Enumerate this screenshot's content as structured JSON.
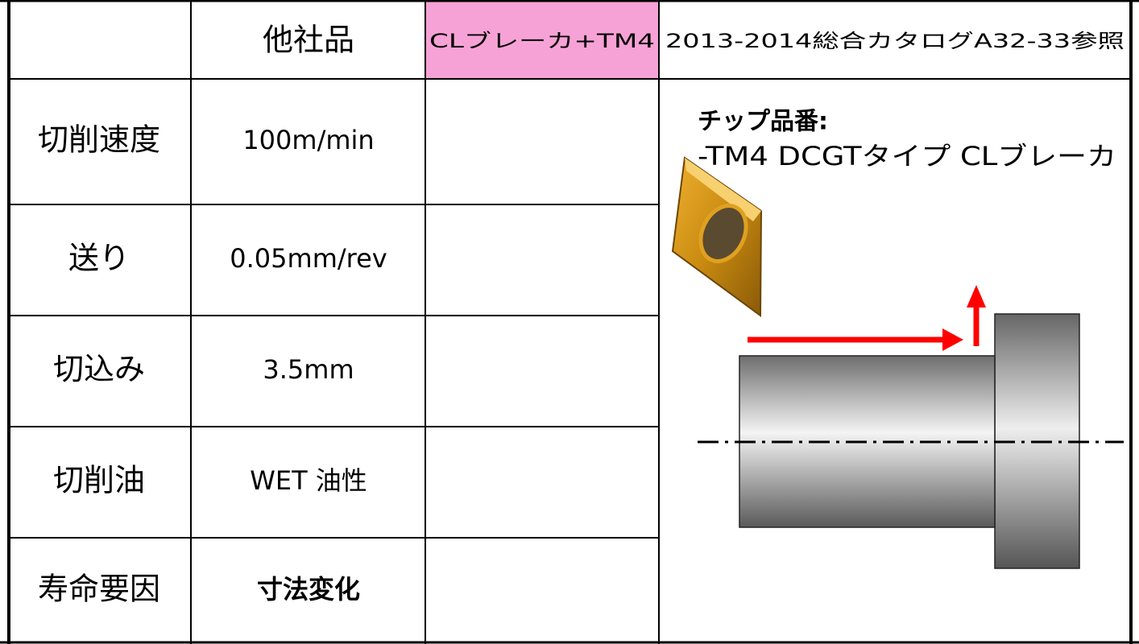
{
  "table": {
    "header": [
      "他社品",
      "CLブレーカ+TM4",
      "2013-2014総合カタログA32-33参照"
    ],
    "rows": [
      [
        "切削速度",
        "100m/min"
      ],
      [
        "送り",
        "0.05mm/rev"
      ],
      [
        "切込み",
        "3.5mm"
      ],
      [
        "切削油",
        "WET 油性"
      ],
      [
        "寿命要因",
        "寸法変化"
      ]
    ]
  },
  "image": {
    "caption": [
      "チップ品番:",
      "-TM4 DCGTタイプ CLブレーカ"
    ]
  }
}
